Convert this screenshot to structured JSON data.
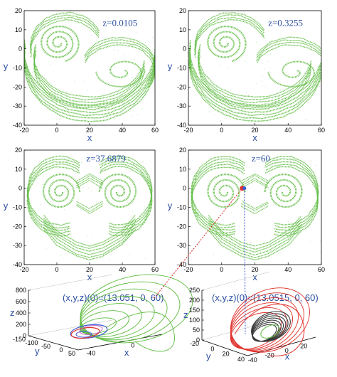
{
  "chart_data": [
    {
      "type": "scatter",
      "panel": "top-left",
      "annotation": "z=0.0105",
      "xlabel": "x",
      "ylabel": "y",
      "xlim": [
        -20,
        60
      ],
      "ylim": [
        -40,
        20
      ],
      "xticks": [
        -20,
        0,
        20,
        40,
        60
      ],
      "yticks": [
        -40,
        -30,
        -20,
        -10,
        0,
        10,
        20
      ],
      "color": "#5dbb3f"
    },
    {
      "type": "scatter",
      "panel": "top-right",
      "annotation": "z=0.3255",
      "xlabel": "x",
      "ylabel": "y",
      "xlim": [
        -20,
        60
      ],
      "ylim": [
        -40,
        20
      ],
      "xticks": [
        -20,
        0,
        20,
        40,
        60
      ],
      "yticks": [
        -40,
        -30,
        -20,
        -10,
        0,
        10,
        20
      ],
      "color": "#5dbb3f"
    },
    {
      "type": "scatter",
      "panel": "middle-left",
      "annotation": "z=37.6879",
      "xlabel": "x",
      "ylabel": "y",
      "xlim": [
        -20,
        60
      ],
      "ylim": [
        -40,
        20
      ],
      "xticks": [
        -20,
        0,
        20,
        40,
        60
      ],
      "yticks": [
        -40,
        -30,
        -20,
        -10,
        0,
        10,
        20
      ],
      "color": "#5dbb3f"
    },
    {
      "type": "scatter",
      "panel": "middle-right",
      "annotation": "z=60",
      "xlabel": "x",
      "ylabel": "y",
      "xlim": [
        -20,
        60
      ],
      "ylim": [
        -40,
        20
      ],
      "xticks": [
        -20,
        0,
        20,
        40,
        60
      ],
      "yticks": [
        -40,
        -30,
        -20,
        -10,
        0,
        10,
        20
      ],
      "color": "#5dbb3f",
      "markers": [
        {
          "label": "red point",
          "x": 13.051,
          "y": 0,
          "color": "#e0302a"
        },
        {
          "label": "blue point",
          "x": 13.0515,
          "y": 0,
          "color": "#3b5bd6"
        }
      ]
    },
    {
      "type": "line3d",
      "panel": "bottom-left",
      "annotation": "(x,y,z)(0)=(13.051, 0, 60)",
      "xlabel": "x",
      "ylabel": "y",
      "zlabel": "z",
      "xticks": [
        -40,
        0
      ],
      "yticks": [
        -150,
        -100,
        -50,
        0,
        50
      ],
      "zticks": [
        0,
        200,
        400,
        600,
        800
      ],
      "colors": [
        "#5dbb3f",
        "#3b5bd6",
        "#e0302a",
        "#c060c0"
      ]
    },
    {
      "type": "line3d",
      "panel": "bottom-right",
      "annotation": "(x,y,z)(0)=(13.0515, 0, 60)",
      "xlabel": "x",
      "ylabel": "y",
      "zlabel": "z",
      "xticks": [
        -40,
        -20,
        0,
        20
      ],
      "yticks": [
        -20,
        0,
        20,
        40
      ],
      "zticks": [
        0,
        50,
        100,
        150,
        200,
        250
      ],
      "colors": [
        "#e0302a",
        "#3a3a3a",
        "#5dbb3f"
      ]
    }
  ]
}
